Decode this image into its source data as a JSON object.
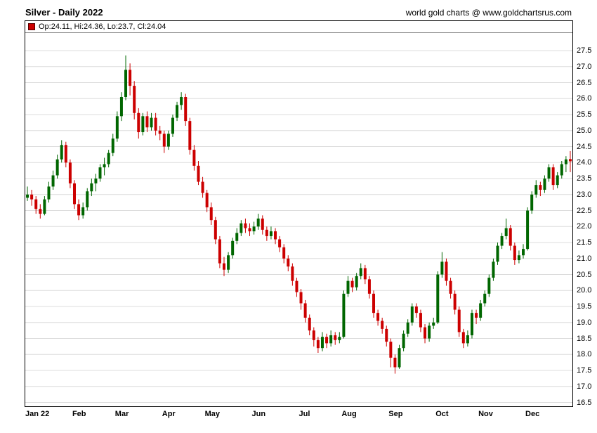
{
  "header": {
    "title": "Silver - Daily 2022",
    "source": "world gold charts @ www.goldchartsrus.com"
  },
  "legend": {
    "label": "Op:24.11, Hi:24.36, Lo:23.7, Cl:24.04",
    "marker_color": "#cc0000"
  },
  "chart_data": {
    "type": "candlestick",
    "title": "Silver - Daily 2022",
    "ylim": [
      16.5,
      27.5
    ],
    "y_tick_step": 0.5,
    "x_tick_labels": [
      "Jan 22",
      "Feb",
      "Mar",
      "Apr",
      "May",
      "Jun",
      "Jul",
      "Aug",
      "Sep",
      "Oct",
      "Nov",
      "Dec"
    ],
    "x_tick_indices": [
      0,
      11,
      21,
      32,
      42,
      53,
      64,
      74,
      85,
      96,
      106,
      117
    ],
    "up_color": "#006600",
    "down_color": "#cc0000",
    "grid_color": "#dcdcdc",
    "grid": "horizontal-only",
    "legend_position": "top-left",
    "last_candle": {
      "open": 24.11,
      "high": 24.36,
      "low": 23.7,
      "close": 24.04
    },
    "candles": [
      [
        22.9,
        23.25,
        22.8,
        23.0
      ],
      [
        23.0,
        23.15,
        22.65,
        22.85
      ],
      [
        22.85,
        22.95,
        22.4,
        22.55
      ],
      [
        22.55,
        22.7,
        22.25,
        22.4
      ],
      [
        22.4,
        22.95,
        22.35,
        22.85
      ],
      [
        22.85,
        23.4,
        22.75,
        23.25
      ],
      [
        23.25,
        23.75,
        23.15,
        23.6
      ],
      [
        23.6,
        24.25,
        23.5,
        24.1
      ],
      [
        24.1,
        24.7,
        24.0,
        24.55
      ],
      [
        24.55,
        24.65,
        23.85,
        24.0
      ],
      [
        24.0,
        24.1,
        23.2,
        23.35
      ],
      [
        23.35,
        23.45,
        22.55,
        22.7
      ],
      [
        22.7,
        22.85,
        22.2,
        22.35
      ],
      [
        22.35,
        22.75,
        22.25,
        22.6
      ],
      [
        22.6,
        23.2,
        22.5,
        23.1
      ],
      [
        23.1,
        23.5,
        22.95,
        23.35
      ],
      [
        23.35,
        23.65,
        23.1,
        23.5
      ],
      [
        23.5,
        23.95,
        23.4,
        23.85
      ],
      [
        23.85,
        24.15,
        23.6,
        23.95
      ],
      [
        23.95,
        24.4,
        23.85,
        24.3
      ],
      [
        24.3,
        24.9,
        24.2,
        24.75
      ],
      [
        24.75,
        25.6,
        24.65,
        25.45
      ],
      [
        25.45,
        26.2,
        25.3,
        26.05
      ],
      [
        26.05,
        27.35,
        25.95,
        26.9
      ],
      [
        26.9,
        27.1,
        26.1,
        26.4
      ],
      [
        26.4,
        26.55,
        25.35,
        25.55
      ],
      [
        25.55,
        25.7,
        24.75,
        24.95
      ],
      [
        24.95,
        25.55,
        24.85,
        25.45
      ],
      [
        25.45,
        25.6,
        24.95,
        25.1
      ],
      [
        25.1,
        25.55,
        25.0,
        25.4
      ],
      [
        25.4,
        25.55,
        24.85,
        25.0
      ],
      [
        25.0,
        25.15,
        24.7,
        24.9
      ],
      [
        24.9,
        25.0,
        24.3,
        24.5
      ],
      [
        24.5,
        25.0,
        24.4,
        24.9
      ],
      [
        24.9,
        25.5,
        24.8,
        25.4
      ],
      [
        25.4,
        25.9,
        25.3,
        25.8
      ],
      [
        25.8,
        26.2,
        25.65,
        26.05
      ],
      [
        26.05,
        26.15,
        25.15,
        25.3
      ],
      [
        25.3,
        25.4,
        24.25,
        24.4
      ],
      [
        24.4,
        24.55,
        23.75,
        23.9
      ],
      [
        23.9,
        24.05,
        23.3,
        23.4
      ],
      [
        23.4,
        23.55,
        22.9,
        23.05
      ],
      [
        23.05,
        23.15,
        22.45,
        22.6
      ],
      [
        22.6,
        22.75,
        22.05,
        22.2
      ],
      [
        22.2,
        22.3,
        21.45,
        21.6
      ],
      [
        21.6,
        21.7,
        20.7,
        20.85
      ],
      [
        20.85,
        21.05,
        20.45,
        20.65
      ],
      [
        20.65,
        21.2,
        20.55,
        21.1
      ],
      [
        21.1,
        21.65,
        21.0,
        21.55
      ],
      [
        21.55,
        21.95,
        21.45,
        21.8
      ],
      [
        21.8,
        22.2,
        21.7,
        22.1
      ],
      [
        22.1,
        22.25,
        21.8,
        21.95
      ],
      [
        21.95,
        22.1,
        21.7,
        21.85
      ],
      [
        21.85,
        22.15,
        21.75,
        22.0
      ],
      [
        22.0,
        22.4,
        21.9,
        22.25
      ],
      [
        22.25,
        22.35,
        21.75,
        21.9
      ],
      [
        21.9,
        22.0,
        21.55,
        21.7
      ],
      [
        21.7,
        22.0,
        21.6,
        21.85
      ],
      [
        21.85,
        21.95,
        21.45,
        21.6
      ],
      [
        21.6,
        21.7,
        21.2,
        21.35
      ],
      [
        21.35,
        21.45,
        20.85,
        21.0
      ],
      [
        21.0,
        21.1,
        20.6,
        20.75
      ],
      [
        20.75,
        20.85,
        20.15,
        20.3
      ],
      [
        20.3,
        20.4,
        19.8,
        19.95
      ],
      [
        19.95,
        20.05,
        19.4,
        19.6
      ],
      [
        19.6,
        19.7,
        19.0,
        19.15
      ],
      [
        19.15,
        19.25,
        18.6,
        18.75
      ],
      [
        18.75,
        18.85,
        18.25,
        18.45
      ],
      [
        18.45,
        18.55,
        18.05,
        18.2
      ],
      [
        18.2,
        18.7,
        18.1,
        18.55
      ],
      [
        18.55,
        18.65,
        18.2,
        18.35
      ],
      [
        18.35,
        18.75,
        18.25,
        18.6
      ],
      [
        18.6,
        18.7,
        18.3,
        18.45
      ],
      [
        18.45,
        18.7,
        18.35,
        18.55
      ],
      [
        18.55,
        20.0,
        18.5,
        19.9
      ],
      [
        19.9,
        20.45,
        19.8,
        20.3
      ],
      [
        20.3,
        20.4,
        19.95,
        20.1
      ],
      [
        20.1,
        20.55,
        20.0,
        20.45
      ],
      [
        20.45,
        20.85,
        20.35,
        20.7
      ],
      [
        20.7,
        20.8,
        20.2,
        20.35
      ],
      [
        20.35,
        20.45,
        19.75,
        19.9
      ],
      [
        19.9,
        20.0,
        19.15,
        19.3
      ],
      [
        19.3,
        19.4,
        18.9,
        19.05
      ],
      [
        19.05,
        19.15,
        18.65,
        18.8
      ],
      [
        18.8,
        18.9,
        18.25,
        18.4
      ],
      [
        18.4,
        18.5,
        17.6,
        17.9
      ],
      [
        17.9,
        18.0,
        17.4,
        17.6
      ],
      [
        17.6,
        18.3,
        17.55,
        18.2
      ],
      [
        18.2,
        18.75,
        18.1,
        18.65
      ],
      [
        18.65,
        19.1,
        18.55,
        19.0
      ],
      [
        19.0,
        19.6,
        18.9,
        19.5
      ],
      [
        19.5,
        19.6,
        19.15,
        19.3
      ],
      [
        19.3,
        19.4,
        18.7,
        18.85
      ],
      [
        18.85,
        18.95,
        18.35,
        18.5
      ],
      [
        18.5,
        19.0,
        18.4,
        18.9
      ],
      [
        18.9,
        19.15,
        18.8,
        19.0
      ],
      [
        19.0,
        20.6,
        18.95,
        20.5
      ],
      [
        20.5,
        21.2,
        20.4,
        20.9
      ],
      [
        20.9,
        21.0,
        20.15,
        20.3
      ],
      [
        20.3,
        20.4,
        19.75,
        19.9
      ],
      [
        19.9,
        20.0,
        19.25,
        19.4
      ],
      [
        19.4,
        19.5,
        18.55,
        18.7
      ],
      [
        18.7,
        18.8,
        18.2,
        18.35
      ],
      [
        18.35,
        18.75,
        18.25,
        18.6
      ],
      [
        18.6,
        19.4,
        18.5,
        19.3
      ],
      [
        19.3,
        19.4,
        18.95,
        19.15
      ],
      [
        19.15,
        19.7,
        19.05,
        19.6
      ],
      [
        19.6,
        20.0,
        19.5,
        19.9
      ],
      [
        19.9,
        20.5,
        19.8,
        20.4
      ],
      [
        20.4,
        21.0,
        20.3,
        20.9
      ],
      [
        20.9,
        21.5,
        20.8,
        21.4
      ],
      [
        21.4,
        21.8,
        21.3,
        21.7
      ],
      [
        21.7,
        22.25,
        21.6,
        21.95
      ],
      [
        21.95,
        22.05,
        21.25,
        21.4
      ],
      [
        21.4,
        21.5,
        20.8,
        20.95
      ],
      [
        20.95,
        21.25,
        20.85,
        21.1
      ],
      [
        21.1,
        21.45,
        21.0,
        21.3
      ],
      [
        21.3,
        22.6,
        21.25,
        22.5
      ],
      [
        22.5,
        23.1,
        22.4,
        23.0
      ],
      [
        23.0,
        23.45,
        22.9,
        23.3
      ],
      [
        23.3,
        23.4,
        22.95,
        23.15
      ],
      [
        23.15,
        23.6,
        23.05,
        23.5
      ],
      [
        23.5,
        23.95,
        23.4,
        23.85
      ],
      [
        23.85,
        23.95,
        23.15,
        23.3
      ],
      [
        23.3,
        23.7,
        23.2,
        23.6
      ],
      [
        23.6,
        24.05,
        23.5,
        23.95
      ],
      [
        23.95,
        24.2,
        23.7,
        24.1
      ],
      [
        24.11,
        24.36,
        23.7,
        24.04
      ]
    ]
  }
}
